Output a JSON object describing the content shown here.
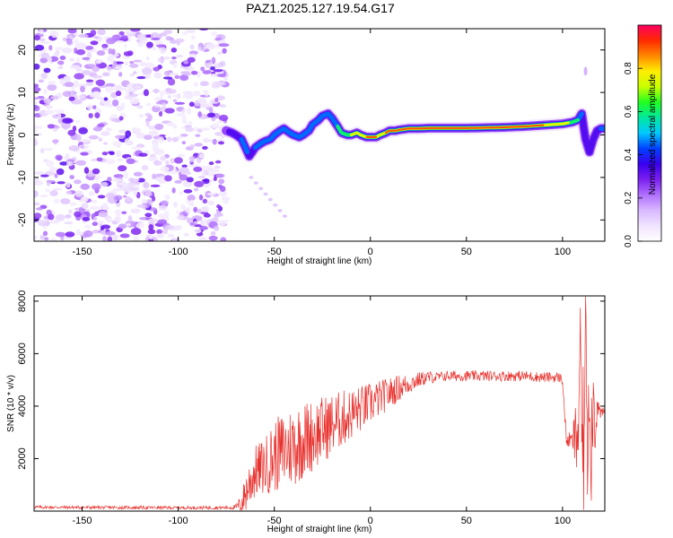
{
  "title": "PAZ1.2025.127.19.54.G17",
  "colors": {
    "snr_line": "#e8322e",
    "colormap": [
      "#ffffff",
      "#f0e4ff",
      "#d9b8ff",
      "#b070ff",
      "#7b1ff0",
      "#3a00f0",
      "#0040ff",
      "#00c8ff",
      "#00e8a0",
      "#20ff20",
      "#c8ff00",
      "#ffee00",
      "#ff8800",
      "#ff2a00",
      "#ff0060"
    ]
  },
  "chart_data": [
    {
      "type": "heatmap",
      "xlabel": "Height of straight line (km)",
      "ylabel": "Frequency (Hz)",
      "xlim": [
        -175,
        122
      ],
      "ylim": [
        -25,
        25
      ],
      "xticks": [
        -150,
        -100,
        -50,
        0,
        50,
        100
      ],
      "yticks": [
        -20,
        -10,
        0,
        10,
        20
      ],
      "colorbar": {
        "label": "Normalized spectral amplitude",
        "range": [
          0,
          1
        ],
        "ticks": [
          0.0,
          0.2,
          0.4,
          0.6,
          0.8
        ],
        "tick_labels": [
          "0.0",
          "0.2",
          "0.4",
          "0.6",
          "0.8"
        ]
      },
      "noise_region_x": [
        -175,
        -75
      ],
      "ridge": {
        "x": [
          -75,
          -72,
          -70,
          -67,
          -65,
          -63,
          -60,
          -57,
          -55,
          -52,
          -50,
          -47,
          -45,
          -42,
          -40,
          -37,
          -35,
          -32,
          -30,
          -27,
          -25,
          -22,
          -20,
          -17,
          -15,
          -12,
          -10,
          -7,
          -5,
          -2,
          0,
          3,
          5,
          8,
          10,
          13,
          15,
          20,
          25,
          30,
          40,
          50,
          60,
          70,
          80,
          90,
          100,
          105,
          108,
          110,
          112,
          114,
          116,
          118,
          120,
          122
        ],
        "frequency": [
          1,
          0.5,
          0,
          -1,
          -3,
          -5,
          -3,
          -2,
          -1.5,
          -1,
          0,
          1,
          1.5,
          0.5,
          0,
          -0.5,
          0,
          1,
          2.5,
          3.5,
          4.5,
          5,
          4,
          2,
          0.5,
          0,
          0,
          0.5,
          0,
          -0.5,
          -0.5,
          -0.5,
          0,
          0.5,
          1,
          1,
          1.2,
          1.5,
          1.5,
          1.6,
          1.6,
          1.6,
          1.7,
          1.8,
          2,
          2.3,
          2.6,
          3,
          3.5,
          5,
          -1,
          -4,
          -1,
          1,
          1.5,
          1.5
        ],
        "amplitude": [
          0.2,
          0.3,
          0.3,
          0.35,
          0.4,
          0.3,
          0.35,
          0.4,
          0.45,
          0.4,
          0.35,
          0.4,
          0.45,
          0.4,
          0.35,
          0.4,
          0.45,
          0.5,
          0.45,
          0.4,
          0.45,
          0.5,
          0.45,
          0.5,
          0.55,
          0.6,
          0.65,
          0.7,
          0.75,
          0.8,
          0.85,
          0.8,
          0.75,
          0.8,
          0.85,
          0.85,
          0.8,
          0.8,
          0.85,
          0.9,
          0.95,
          0.95,
          0.95,
          0.9,
          0.85,
          0.8,
          0.75,
          0.6,
          0.5,
          0.35,
          0.3,
          0.3,
          0.3,
          0.3,
          0.35,
          0.35
        ],
        "bandwidth_hz": 1.2
      }
    },
    {
      "type": "line",
      "xlabel": "Height of straight line (km)",
      "ylabel": "SNR (10 * v/v)",
      "xlim": [
        -175,
        122
      ],
      "ylim": [
        0,
        8200
      ],
      "xticks": [
        -150,
        -100,
        -50,
        0,
        50,
        100
      ],
      "yticks": [
        2000,
        4000,
        6000,
        8000
      ],
      "series": [
        {
          "x": [
            -175,
            -150,
            -100,
            -75,
            -70,
            -67,
            -65,
            -62,
            -60,
            -55,
            -50,
            -45,
            -40,
            -35,
            -30,
            -25,
            -20,
            -15,
            -10,
            -5,
            0,
            5,
            10,
            15,
            20,
            25,
            30,
            35,
            40,
            50,
            60,
            70,
            80,
            90,
            95,
            98,
            100,
            102,
            105,
            107,
            108,
            109,
            110,
            111,
            112,
            113,
            114,
            115,
            116,
            117,
            118,
            120,
            122
          ],
          "mean": [
            150,
            140,
            130,
            130,
            150,
            300,
            700,
            1200,
            1500,
            1700,
            2100,
            2300,
            2500,
            2700,
            2900,
            3100,
            3300,
            3500,
            3700,
            3900,
            4100,
            4300,
            4500,
            4700,
            4850,
            5000,
            5100,
            5100,
            5150,
            5150,
            5150,
            5150,
            5150,
            5100,
            5100,
            5100,
            5000,
            2700,
            2700,
            2800,
            3000,
            6000,
            3500,
            2000,
            7500,
            3000,
            5000,
            2500,
            4500,
            3000,
            4000,
            3700,
            3800
          ],
          "spread": [
            60,
            60,
            60,
            60,
            100,
            400,
            800,
            1000,
            1000,
            1100,
            1400,
            1500,
            1600,
            1500,
            1400,
            1300,
            1200,
            1100,
            1000,
            900,
            800,
            700,
            600,
            500,
            400,
            300,
            250,
            200,
            200,
            200,
            200,
            200,
            200,
            200,
            200,
            200,
            200,
            300,
            300,
            1500,
            3000,
            2000,
            3500,
            3000,
            800,
            3000,
            2000,
            2500,
            1500,
            1000,
            500,
            200,
            200
          ]
        }
      ]
    }
  ]
}
